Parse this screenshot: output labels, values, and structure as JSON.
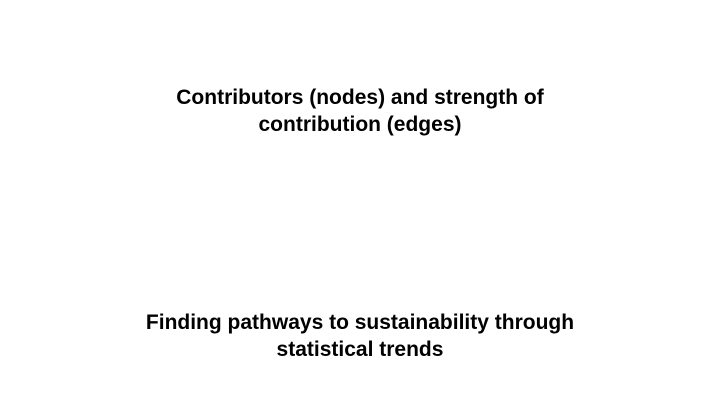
{
  "slide": {
    "top_heading": {
      "line1": "Contributors (nodes) and strength of",
      "line2": "contribution (edges)"
    },
    "bottom_heading": {
      "line1": "Finding pathways to sustainability through",
      "line2": "statistical trends"
    }
  },
  "colors": {
    "background": "#ffffff",
    "text": "#000000"
  }
}
